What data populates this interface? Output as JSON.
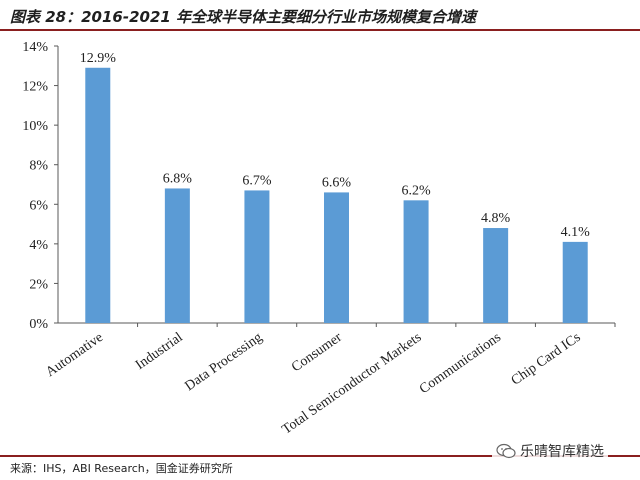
{
  "figure": {
    "title": "图表 28：2016-2021 年全球半导体主要细分行业市场规模复合增速",
    "source": "来源：IHS，ABI Research，国金证券研究所",
    "watermark": "乐晴智库精选",
    "colors": {
      "bar": "#5b9bd5",
      "rule": "#8a1f1f",
      "axis": "#595959"
    }
  },
  "chart_data": {
    "type": "bar",
    "title": "",
    "xlabel": "",
    "ylabel": "",
    "categories": [
      "Automative",
      "Industrial",
      "Data Processing",
      "Consumer",
      "Total Semiconductor Markets",
      "Communications",
      "Chip Card ICs"
    ],
    "values": [
      12.9,
      6.8,
      6.7,
      6.6,
      6.2,
      4.8,
      4.1
    ],
    "data_labels": [
      "12.9%",
      "6.8%",
      "6.7%",
      "6.6%",
      "6.2%",
      "4.8%",
      "4.1%"
    ],
    "ylim": [
      0,
      14
    ],
    "yticks": [
      0,
      2,
      4,
      6,
      8,
      10,
      12,
      14
    ],
    "ytick_labels": [
      "0%",
      "2%",
      "4%",
      "6%",
      "8%",
      "10%",
      "12%",
      "14%"
    ],
    "grid": false,
    "legend": "none"
  }
}
